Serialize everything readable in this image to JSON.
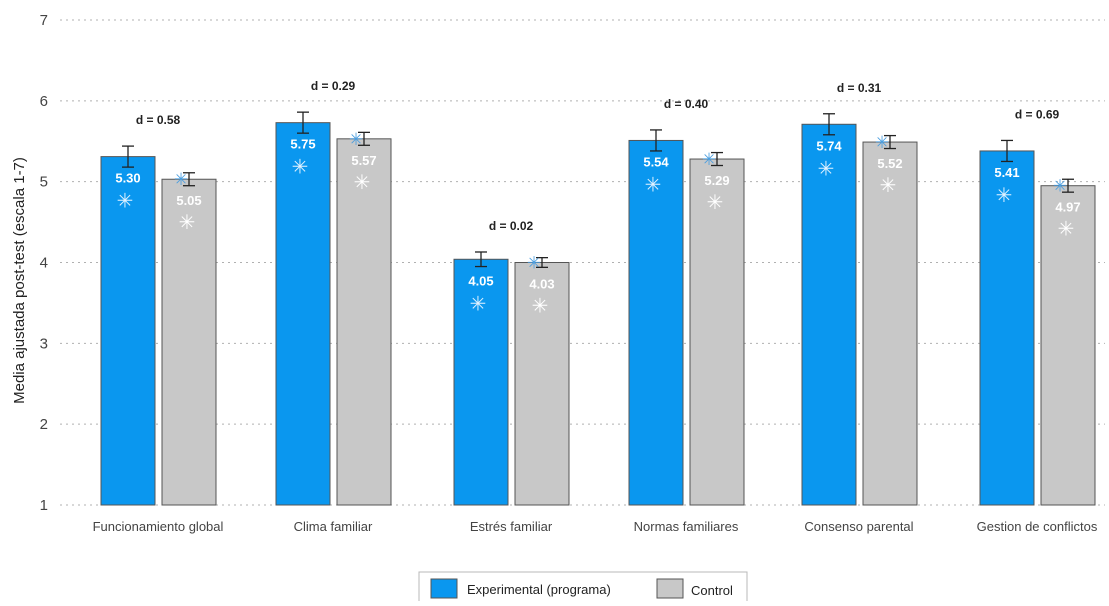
{
  "chart_data": {
    "type": "bar",
    "title": "",
    "xlabel": "",
    "ylabel": "Media ajustada post-test (escala 1-7)",
    "ylim": [
      1,
      7
    ],
    "yticks": [
      1,
      2,
      3,
      4,
      5,
      6,
      7
    ],
    "grid": true,
    "legend_position": "bottom-center",
    "categories": [
      "Funcionamiento global",
      "Clima familiar",
      "Estrés familiar",
      "Normas familiares",
      "Consenso parental",
      "Gestion de conflictos"
    ],
    "series": [
      {
        "name": "Experimental (programa)",
        "color": "#0a97ef",
        "values": [
          5.3,
          5.75,
          4.05,
          5.54,
          5.74,
          5.41
        ],
        "heights": [
          5.31,
          5.73,
          4.04,
          5.51,
          5.71,
          5.38
        ],
        "error": [
          0.13,
          0.13,
          0.09,
          0.13,
          0.13,
          0.13
        ],
        "data_labels": [
          "5.30",
          "5.75",
          "4.05",
          "5.54",
          "5.74",
          "5.41"
        ]
      },
      {
        "name": "Control",
        "color": "#c8c8c8",
        "values": [
          5.05,
          5.57,
          4.03,
          5.29,
          5.52,
          4.97
        ],
        "heights": [
          5.03,
          5.53,
          4.0,
          5.28,
          5.49,
          4.95
        ],
        "error": [
          0.08,
          0.08,
          0.06,
          0.08,
          0.08,
          0.08
        ],
        "data_labels": [
          "5.05",
          "5.57",
          "4.03",
          "5.29",
          "5.52",
          "4.97"
        ]
      }
    ],
    "annotations": [
      "d = 0.58",
      "d = 0.29",
      "d = 0.02",
      "d = 0.40",
      "d = 0.31",
      "d = 0.69"
    ],
    "marker_symbol": "✳",
    "colors": {
      "axis_text": "#444444",
      "grid": "#b0b0b0",
      "bar_border": "#555555",
      "error_bar": "#222222",
      "exp_marker_on_bar": "#dff1ff",
      "exp_marker_top": "#5aa8e0",
      "ctrl_marker_on_bar": "#ffffff",
      "ctrl_marker_top": "#4a9ee0"
    }
  }
}
